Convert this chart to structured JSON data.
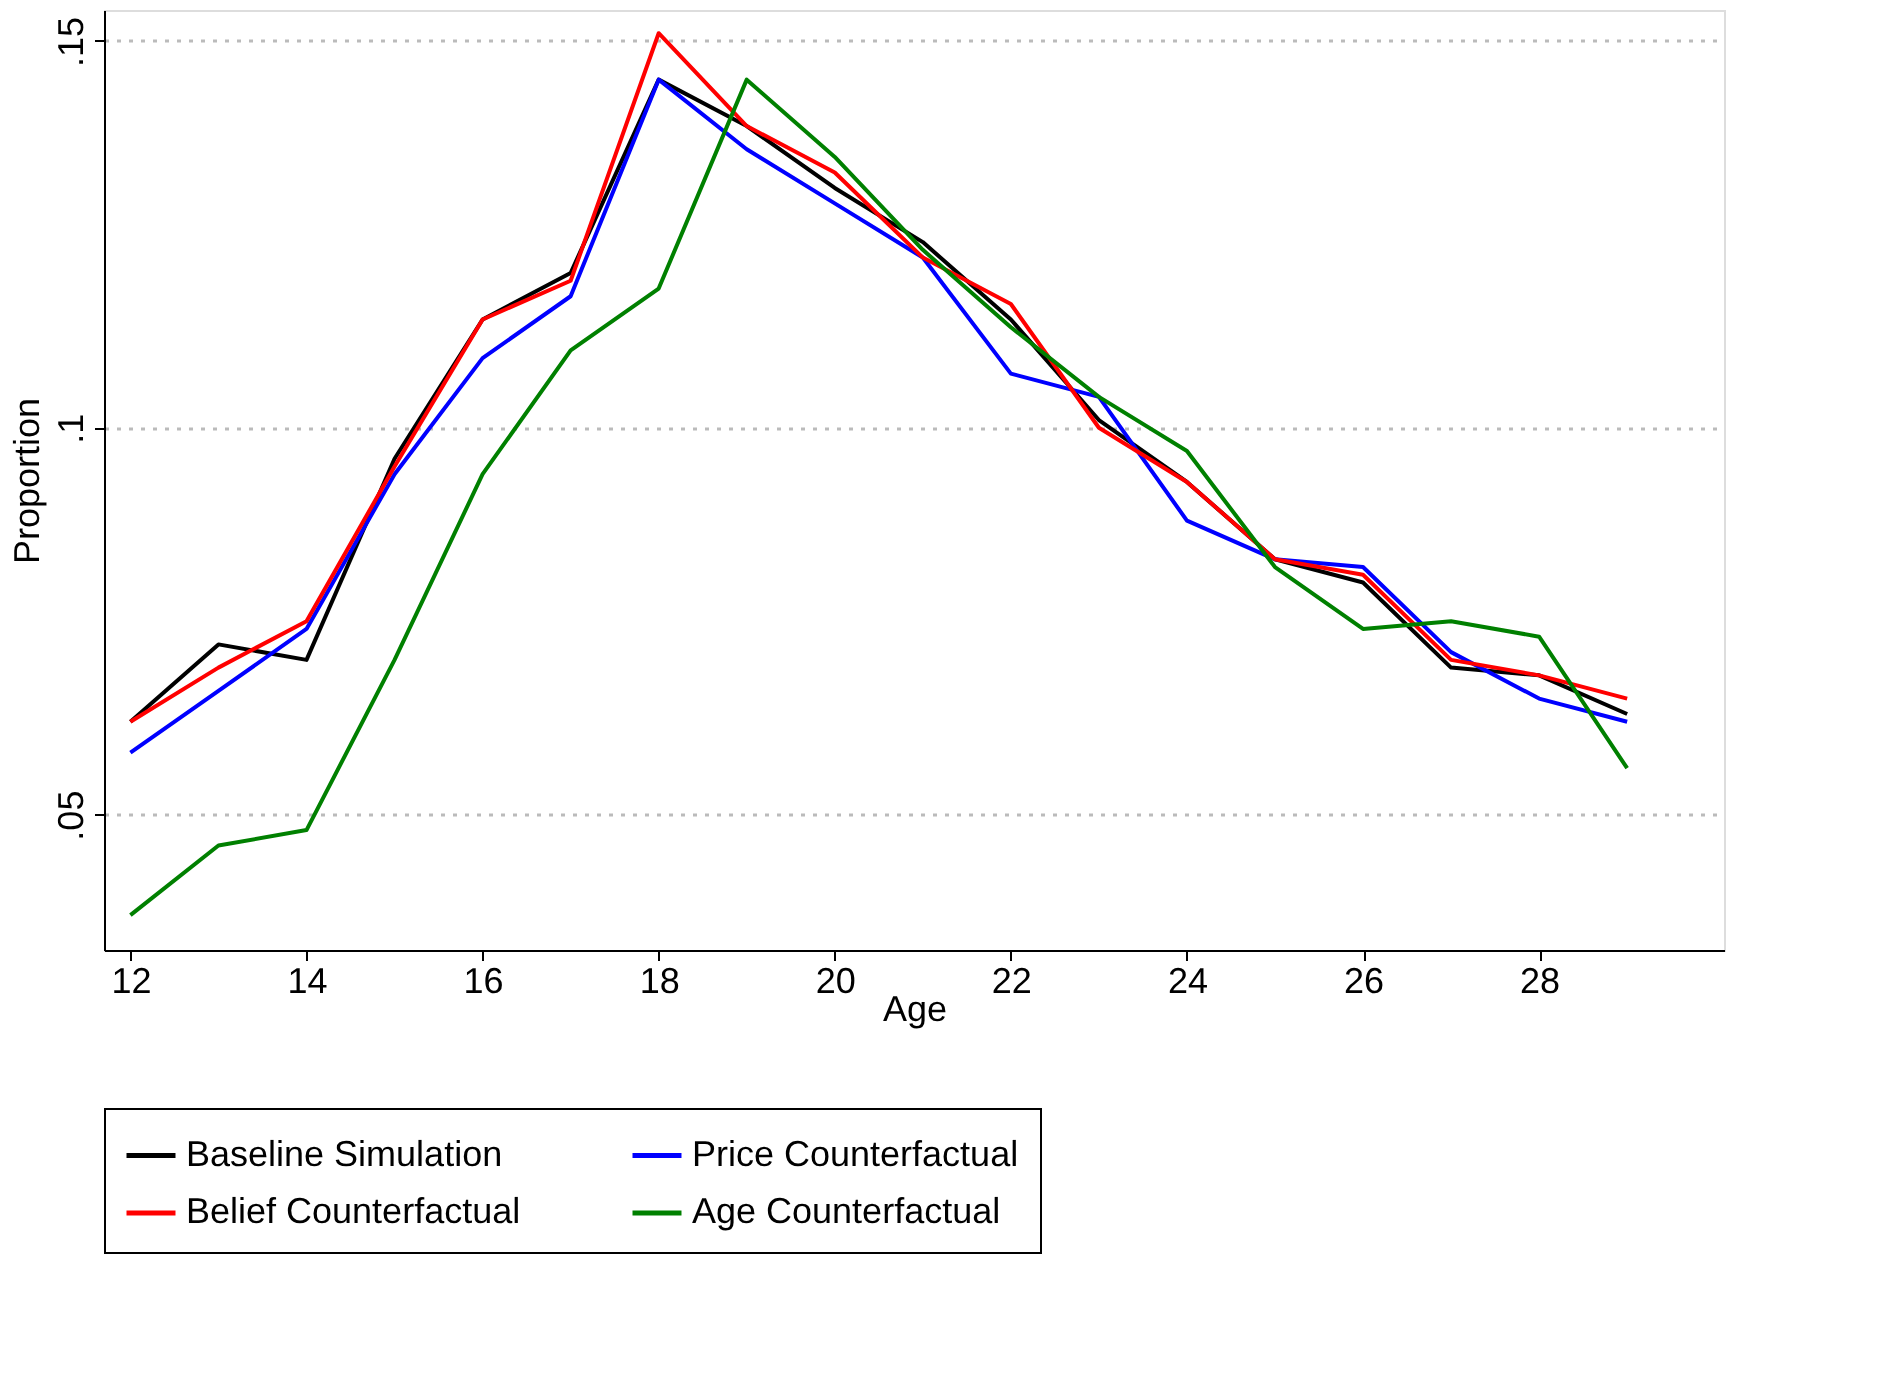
{
  "chart_data": {
    "type": "line",
    "xlabel": "Age",
    "ylabel": "Proportion",
    "x": [
      12,
      13,
      14,
      15,
      16,
      17,
      18,
      19,
      20,
      21,
      22,
      23,
      24,
      25,
      26,
      27,
      28,
      29
    ],
    "series": [
      {
        "name": "Baseline Simulation",
        "color": "#000000",
        "values": [
          0.062,
          0.072,
          0.07,
          0.096,
          0.114,
          0.12,
          0.145,
          0.139,
          0.131,
          0.124,
          0.114,
          0.101,
          0.093,
          0.083,
          0.08,
          0.069,
          0.068,
          0.063
        ]
      },
      {
        "name": "Price Counterfactual",
        "color": "#0000ff",
        "values": [
          0.058,
          0.066,
          0.074,
          0.094,
          0.109,
          0.117,
          0.145,
          0.136,
          0.129,
          0.122,
          0.107,
          0.104,
          0.088,
          0.083,
          0.082,
          0.071,
          0.065,
          0.062
        ]
      },
      {
        "name": "Belief Counterfactual",
        "color": "#ff0000",
        "values": [
          0.062,
          0.069,
          0.075,
          0.095,
          0.114,
          0.119,
          0.151,
          0.139,
          0.133,
          0.122,
          0.116,
          0.1,
          0.093,
          0.083,
          0.081,
          0.07,
          0.068,
          0.065
        ]
      },
      {
        "name": "Age Counterfactual",
        "color": "#008000",
        "values": [
          0.037,
          0.046,
          0.048,
          0.07,
          0.094,
          0.11,
          0.118,
          0.145,
          0.135,
          0.123,
          0.113,
          0.104,
          0.097,
          0.082,
          0.074,
          0.075,
          0.073,
          0.056
        ]
      }
    ],
    "xlim": [
      11.7,
      30.1
    ],
    "xticks": [
      12,
      14,
      16,
      18,
      20,
      22,
      24,
      26,
      28
    ],
    "ylim": [
      0.0325,
      0.154
    ],
    "yticks": [
      {
        "value": 0.05,
        "label": ".05"
      },
      {
        "value": 0.1,
        "label": ".1"
      },
      {
        "value": 0.15,
        "label": ".15"
      }
    ],
    "grid": "y",
    "legend": "bottom",
    "line_style": "solid",
    "marker": "none"
  }
}
